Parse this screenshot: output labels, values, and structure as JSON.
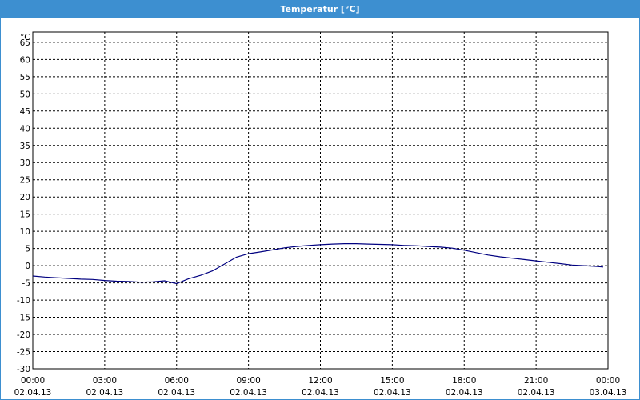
{
  "window": {
    "title": "Temperatur [°C]"
  },
  "colors": {
    "titlebar": "#3d8fd0",
    "series": "#000080",
    "grid": "#000000"
  },
  "chart_data": {
    "type": "line",
    "title": "Temperatur [°C]",
    "ylabel": "°C",
    "xlabel": "",
    "ylim": [
      -30,
      68
    ],
    "yticks": [
      65,
      60,
      55,
      50,
      45,
      40,
      35,
      30,
      25,
      20,
      15,
      10,
      5,
      0,
      -5,
      -10,
      -15,
      -20,
      -25,
      -30
    ],
    "xlim_hours": [
      0,
      24
    ],
    "xticks": [
      {
        "time": "00:00",
        "date": "02.04.13"
      },
      {
        "time": "03:00",
        "date": "02.04.13"
      },
      {
        "time": "06:00",
        "date": "02.04.13"
      },
      {
        "time": "09:00",
        "date": "02.04.13"
      },
      {
        "time": "12:00",
        "date": "02.04.13"
      },
      {
        "time": "15:00",
        "date": "02.04.13"
      },
      {
        "time": "18:00",
        "date": "02.04.13"
      },
      {
        "time": "21:00",
        "date": "02.04.13"
      },
      {
        "time": "00:00",
        "date": "03.04.13"
      }
    ],
    "grid": true,
    "legend": "none",
    "series": [
      {
        "x": [
          0,
          0.5,
          1,
          1.5,
          2,
          2.5,
          3,
          3.5,
          4,
          4.5,
          5,
          5.5,
          5.8,
          6,
          6.5,
          7,
          7.5,
          8,
          8.5,
          9,
          9.5,
          10,
          10.5,
          11,
          11.5,
          12,
          12.5,
          13,
          13.5,
          14,
          14.5,
          15,
          15.5,
          16,
          16.5,
          17,
          17.5,
          18,
          18.5,
          19,
          19.5,
          20,
          20.5,
          21,
          21.5,
          22,
          22.5,
          23,
          23.5,
          23.8
        ],
        "values": [
          -3.0,
          -3.3,
          -3.5,
          -3.7,
          -3.9,
          -4.0,
          -4.3,
          -4.5,
          -4.6,
          -4.8,
          -4.7,
          -4.4,
          -4.9,
          -5.2,
          -3.8,
          -2.8,
          -1.5,
          0.5,
          2.5,
          3.5,
          4.0,
          4.6,
          5.2,
          5.6,
          5.9,
          6.1,
          6.3,
          6.4,
          6.4,
          6.3,
          6.2,
          6.1,
          5.9,
          5.8,
          5.6,
          5.4,
          5.1,
          4.5,
          3.8,
          3.1,
          2.6,
          2.2,
          1.8,
          1.4,
          1.0,
          0.6,
          0.2,
          0.0,
          -0.2,
          -0.4
        ]
      }
    ]
  }
}
